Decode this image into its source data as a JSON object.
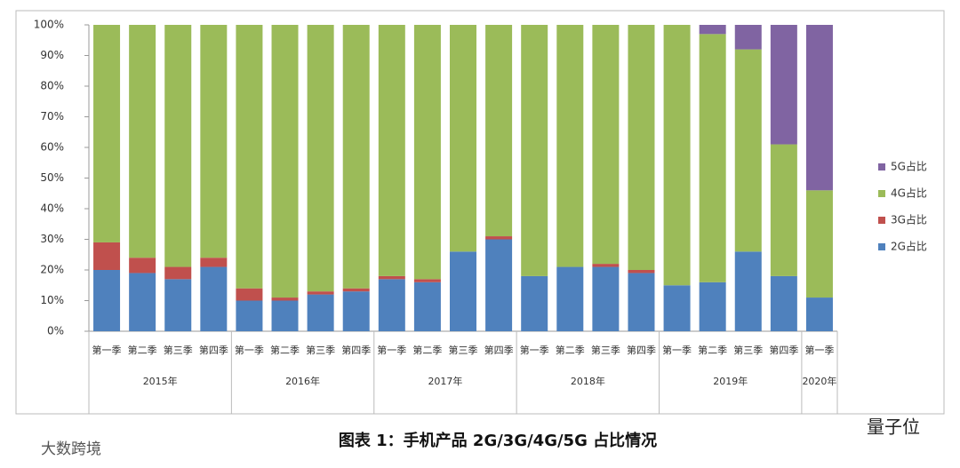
{
  "chart_data": {
    "type": "bar",
    "stacked": true,
    "groups": [
      {
        "name": "2015年",
        "categories": [
          "第一季",
          "第二季",
          "第三季",
          "第四季"
        ]
      },
      {
        "name": "2016年",
        "categories": [
          "第一季",
          "第二季",
          "第三季",
          "第四季"
        ]
      },
      {
        "name": "2017年",
        "categories": [
          "第一季",
          "第二季",
          "第三季",
          "第四季"
        ]
      },
      {
        "name": "2018年",
        "categories": [
          "第一季",
          "第二季",
          "第三季",
          "第四季"
        ]
      },
      {
        "name": "2019年",
        "categories": [
          "第一季",
          "第二季",
          "第三季",
          "第四季"
        ]
      },
      {
        "name": "2020年",
        "categories": [
          "第一季"
        ]
      }
    ],
    "series": [
      {
        "name": "2G占比",
        "color": "#4f81bd",
        "values": [
          20,
          19,
          17,
          21,
          10,
          10,
          12,
          13,
          17,
          16,
          26,
          30,
          18,
          21,
          21,
          19,
          15,
          16,
          26,
          18,
          11
        ]
      },
      {
        "name": "3G占比",
        "color": "#c0504d",
        "values": [
          9,
          5,
          4,
          3,
          4,
          1,
          1,
          1,
          1,
          1,
          0,
          1,
          0,
          0,
          1,
          1,
          0,
          0,
          0,
          0,
          0
        ]
      },
      {
        "name": "4G占比",
        "color": "#9bbb59",
        "values": [
          71,
          76,
          79,
          76,
          86,
          89,
          87,
          86,
          82,
          83,
          74,
          69,
          82,
          79,
          78,
          80,
          85,
          81,
          66,
          43,
          35
        ]
      },
      {
        "name": "5G占比",
        "color": "#8064a2",
        "values": [
          0,
          0,
          0,
          0,
          0,
          0,
          0,
          0,
          0,
          0,
          0,
          0,
          0,
          0,
          0,
          0,
          0,
          3,
          8,
          39,
          54
        ]
      }
    ],
    "ylim": [
      0,
      100
    ],
    "yticks": [
      {
        "value": 0,
        "label": "0%"
      },
      {
        "value": 10,
        "label": "10%"
      },
      {
        "value": 20,
        "label": "20%"
      },
      {
        "value": 30,
        "label": "30%"
      },
      {
        "value": 40,
        "label": "40%"
      },
      {
        "value": 50,
        "label": "50%"
      },
      {
        "value": 60,
        "label": "60%"
      },
      {
        "value": 70,
        "label": "70%"
      },
      {
        "value": 80,
        "label": "80%"
      },
      {
        "value": 90,
        "label": "90%"
      },
      {
        "value": 100,
        "label": "100%"
      }
    ],
    "grid": false,
    "legend": "right",
    "caption": "图表 1：手机产品 2G/3G/4G/5G 占比情况",
    "watermark_right": "量子位",
    "watermark_left": "大数跨境"
  }
}
